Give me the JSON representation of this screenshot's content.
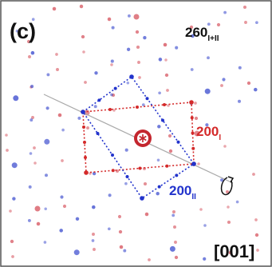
{
  "panel_label": "(c)",
  "labels": [
    {
      "text": "260",
      "subscript": "I+II"
    },
    {
      "text": "200",
      "subscript": "I"
    },
    {
      "text": "200",
      "subscript": "II"
    }
  ],
  "zone_axis": "[001]"
}
